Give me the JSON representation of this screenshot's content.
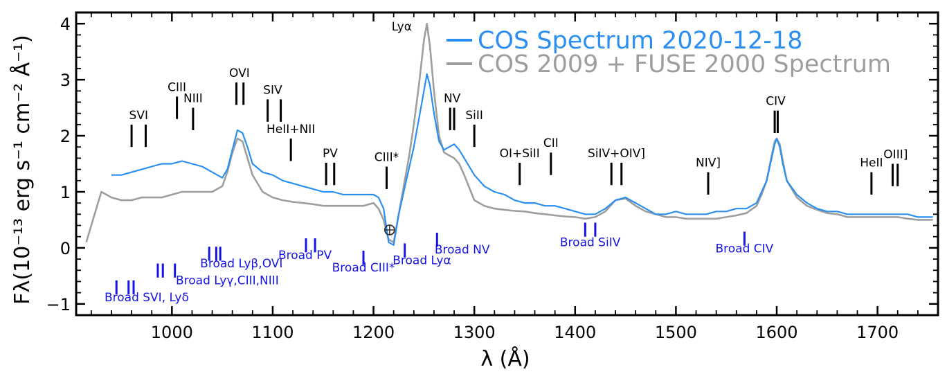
{
  "chart_data": {
    "type": "line",
    "title": "",
    "xlabel": "λ (Å)",
    "ylabel": "Fλ(10⁻¹³ erg s⁻¹ cm⁻² Å⁻¹)",
    "xlim": [
      905,
      1760
    ],
    "ylim": [
      -1.2,
      4.2
    ],
    "x_ticks": [
      1000,
      1100,
      1200,
      1300,
      1400,
      1500,
      1600,
      1700
    ],
    "y_ticks": [
      -1,
      0,
      1,
      2,
      3,
      4
    ],
    "legend_position": "top-right",
    "colors": {
      "cos2020": "#2a8ff0",
      "archival": "#9e9e9e",
      "broad": "#1414e6",
      "ident": "#000000"
    },
    "series": [
      {
        "key": "cos2020",
        "name": "COS Spectrum 2020-12-18",
        "x": [
          940,
          950,
          960,
          970,
          980,
          990,
          1000,
          1010,
          1020,
          1030,
          1040,
          1050,
          1055,
          1060,
          1065,
          1070,
          1075,
          1080,
          1090,
          1100,
          1110,
          1120,
          1130,
          1140,
          1150,
          1160,
          1170,
          1180,
          1190,
          1200,
          1205,
          1210,
          1215,
          1220,
          1225,
          1230,
          1235,
          1240,
          1245,
          1250,
          1253,
          1256,
          1260,
          1265,
          1270,
          1275,
          1280,
          1285,
          1290,
          1300,
          1310,
          1320,
          1330,
          1340,
          1350,
          1360,
          1370,
          1380,
          1390,
          1400,
          1410,
          1420,
          1430,
          1440,
          1450,
          1460,
          1470,
          1480,
          1490,
          1500,
          1510,
          1520,
          1530,
          1540,
          1550,
          1560,
          1570,
          1580,
          1585,
          1590,
          1595,
          1598,
          1600,
          1603,
          1606,
          1610,
          1620,
          1630,
          1640,
          1650,
          1660,
          1670,
          1680,
          1690,
          1700,
          1710,
          1720,
          1730,
          1740,
          1750,
          1755
        ],
        "y": [
          1.3,
          1.3,
          1.35,
          1.4,
          1.45,
          1.5,
          1.5,
          1.55,
          1.5,
          1.45,
          1.35,
          1.25,
          1.4,
          1.75,
          2.1,
          2.05,
          1.8,
          1.5,
          1.35,
          1.3,
          1.2,
          1.15,
          1.1,
          1.05,
          1.0,
          1.0,
          0.95,
          0.95,
          0.95,
          0.95,
          0.9,
          0.7,
          0.1,
          0.05,
          0.6,
          1.0,
          1.4,
          1.8,
          2.3,
          2.8,
          3.1,
          2.9,
          2.4,
          1.9,
          1.75,
          1.8,
          1.85,
          1.75,
          1.6,
          1.3,
          1.1,
          1.0,
          0.95,
          0.85,
          0.8,
          0.8,
          0.75,
          0.75,
          0.7,
          0.65,
          0.6,
          0.6,
          0.7,
          0.85,
          0.9,
          0.8,
          0.7,
          0.6,
          0.6,
          0.65,
          0.6,
          0.6,
          0.6,
          0.65,
          0.65,
          0.7,
          0.7,
          0.8,
          1.0,
          1.2,
          1.6,
          1.85,
          1.95,
          1.8,
          1.5,
          1.2,
          0.95,
          0.8,
          0.7,
          0.65,
          0.65,
          0.6,
          0.6,
          0.6,
          0.6,
          0.6,
          0.6,
          0.6,
          0.55,
          0.55,
          0.55
        ]
      },
      {
        "key": "archival",
        "name": "COS 2009 + FUSE 2000 Spectrum",
        "x": [
          915,
          920,
          925,
          930,
          940,
          950,
          960,
          970,
          980,
          990,
          1000,
          1010,
          1020,
          1030,
          1040,
          1050,
          1055,
          1060,
          1065,
          1070,
          1075,
          1080,
          1090,
          1100,
          1110,
          1120,
          1130,
          1140,
          1150,
          1160,
          1170,
          1180,
          1190,
          1200,
          1205,
          1210,
          1215,
          1220,
          1225,
          1230,
          1235,
          1240,
          1245,
          1250,
          1253,
          1256,
          1260,
          1265,
          1270,
          1275,
          1280,
          1285,
          1290,
          1300,
          1310,
          1320,
          1330,
          1340,
          1350,
          1360,
          1370,
          1380,
          1390,
          1400,
          1410,
          1420,
          1430,
          1440,
          1450,
          1460,
          1470,
          1480,
          1490,
          1500,
          1510,
          1520,
          1530,
          1540,
          1550,
          1560,
          1570,
          1580,
          1585,
          1590,
          1595,
          1598,
          1600,
          1603,
          1606,
          1610,
          1620,
          1630,
          1640,
          1650,
          1660,
          1670,
          1680,
          1690,
          1700,
          1710,
          1720,
          1730,
          1740,
          1750,
          1755
        ],
        "y": [
          0.1,
          0.4,
          0.7,
          1.0,
          0.9,
          0.85,
          0.85,
          0.9,
          0.9,
          0.9,
          0.95,
          1.0,
          1.0,
          1.0,
          1.0,
          1.1,
          1.35,
          1.7,
          1.95,
          1.9,
          1.6,
          1.3,
          1.0,
          0.9,
          0.85,
          0.82,
          0.8,
          0.78,
          0.75,
          0.75,
          0.75,
          0.75,
          0.75,
          0.8,
          0.7,
          0.5,
          0.15,
          0.1,
          0.6,
          1.1,
          1.6,
          2.2,
          2.9,
          3.7,
          4.0,
          3.6,
          2.8,
          2.0,
          1.7,
          1.65,
          1.6,
          1.5,
          1.3,
          0.85,
          0.75,
          0.7,
          0.68,
          0.66,
          0.65,
          0.62,
          0.6,
          0.58,
          0.56,
          0.55,
          0.52,
          0.55,
          0.65,
          0.85,
          0.88,
          0.75,
          0.65,
          0.6,
          0.55,
          0.55,
          0.52,
          0.52,
          0.52,
          0.52,
          0.55,
          0.58,
          0.62,
          0.75,
          0.95,
          1.2,
          1.65,
          1.9,
          1.95,
          1.85,
          1.55,
          1.2,
          0.9,
          0.75,
          0.68,
          0.62,
          0.6,
          0.55,
          0.55,
          0.55,
          0.55,
          0.55,
          0.55,
          0.52,
          0.5,
          0.5,
          0.5
        ]
      }
    ],
    "line_ids": [
      {
        "label": "SVI",
        "x": [
          960,
          974
        ],
        "bar_y": [
          1.8,
          2.2
        ],
        "text_x": 967,
        "text_y": 2.3
      },
      {
        "label": "CIII",
        "x": [
          1005
        ],
        "bar_y": [
          2.3,
          2.7
        ],
        "text_x": 1005,
        "text_y": 2.8
      },
      {
        "label": "NIII",
        "x": [
          1021
        ],
        "bar_y": [
          2.1,
          2.5
        ],
        "text_x": 1021,
        "text_y": 2.6
      },
      {
        "label": "OVI",
        "x": [
          1064,
          1071
        ],
        "bar_y": [
          2.55,
          2.95
        ],
        "text_x": 1067,
        "text_y": 3.05
      },
      {
        "label": "SIV",
        "x": [
          1095,
          1108
        ],
        "bar_y": [
          2.25,
          2.65
        ],
        "text_x": 1100,
        "text_y": 2.75
      },
      {
        "label": "HeII+NII",
        "x": [
          1118
        ],
        "bar_y": [
          1.55,
          1.95
        ],
        "text_x": 1118,
        "text_y": 2.05
      },
      {
        "label": "PV",
        "x": [
          1153,
          1161
        ],
        "bar_y": [
          1.12,
          1.52
        ],
        "text_x": 1157,
        "text_y": 1.62
      },
      {
        "label": "CIII*",
        "x": [
          1213
        ],
        "bar_y": [
          1.05,
          1.45
        ],
        "text_x": 1213,
        "text_y": 1.55
      },
      {
        "label": "Lyα",
        "x": [],
        "bar_y": [],
        "text_x": 1228,
        "text_y": 3.88
      },
      {
        "label": "NV",
        "x": [
          1276,
          1280
        ],
        "bar_y": [
          2.1,
          2.5
        ],
        "text_x": 1278,
        "text_y": 2.6
      },
      {
        "label": "SiII",
        "x": [
          1300
        ],
        "bar_y": [
          1.8,
          2.2
        ],
        "text_x": 1300,
        "text_y": 2.3
      },
      {
        "label": "OI+SiII",
        "x": [
          1345
        ],
        "bar_y": [
          1.12,
          1.52
        ],
        "text_x": 1345,
        "text_y": 1.62
      },
      {
        "label": "CII",
        "x": [
          1376
        ],
        "bar_y": [
          1.3,
          1.7
        ],
        "text_x": 1376,
        "text_y": 1.8
      },
      {
        "label": "SiIV+OIV]",
        "x": [
          1436,
          1446
        ],
        "bar_y": [
          1.12,
          1.52
        ],
        "text_x": 1441,
        "text_y": 1.62
      },
      {
        "label": "NIV]",
        "x": [
          1532
        ],
        "bar_y": [
          0.95,
          1.35
        ],
        "text_x": 1532,
        "text_y": 1.45
      },
      {
        "label": "CIV",
        "x": [
          1598,
          1601
        ],
        "bar_y": [
          2.05,
          2.45
        ],
        "text_x": 1599,
        "text_y": 2.55
      },
      {
        "label": "HeII",
        "x": [
          1694
        ],
        "bar_y": [
          0.95,
          1.35
        ],
        "text_x": 1694,
        "text_y": 1.45
      },
      {
        "label": "OIII]",
        "x": [
          1715,
          1720
        ],
        "bar_y": [
          1.1,
          1.5
        ],
        "text_x": 1718,
        "text_y": 1.6
      }
    ],
    "broad_ids": [
      {
        "label": "Broad SVI, Lyδ",
        "x": [
          945,
          957,
          962
        ],
        "bar_y": [
          -0.83,
          -0.58
        ],
        "text_x": 975,
        "text_y": -0.95
      },
      {
        "label": "Broad Lyγ,CIII,NIII",
        "x": [
          986,
          991,
          1003
        ],
        "bar_y": [
          -0.53,
          -0.28
        ],
        "text_x": 1055,
        "text_y": -0.65
      },
      {
        "label": "Broad Lyβ,OVI",
        "x": [
          1037,
          1044,
          1048
        ],
        "bar_y": [
          -0.23,
          0.02
        ],
        "text_x": 1069,
        "text_y": -0.35
      },
      {
        "label": "Broad PV",
        "x": [
          1133,
          1142
        ],
        "bar_y": [
          -0.08,
          0.17
        ],
        "text_x": 1132,
        "text_y": -0.2
      },
      {
        "label": "Broad CIII*",
        "x": [
          1190
        ],
        "bar_y": [
          -0.3,
          -0.05
        ],
        "text_x": 1190,
        "text_y": -0.42
      },
      {
        "label": "Broad Lyα",
        "x": [
          1231
        ],
        "bar_y": [
          -0.17,
          0.08
        ],
        "text_x": 1248,
        "text_y": -0.29
      },
      {
        "label": "Broad NV",
        "x": [
          1263
        ],
        "bar_y": [
          0.02,
          0.27
        ],
        "text_x": 1288,
        "text_y": -0.1
      },
      {
        "label": "Broad SiIV",
        "x": [
          1410,
          1420
        ],
        "bar_y": [
          0.2,
          0.45
        ],
        "text_x": 1415,
        "text_y": 0.03
      },
      {
        "label": "Broad CIV",
        "x": [
          1568
        ],
        "bar_y": [
          0.04,
          0.29
        ],
        "text_x": 1568,
        "text_y": -0.08
      }
    ],
    "geocoronal_marker": {
      "x": 1216,
      "y": 0.32,
      "symbol": "⊕"
    }
  }
}
